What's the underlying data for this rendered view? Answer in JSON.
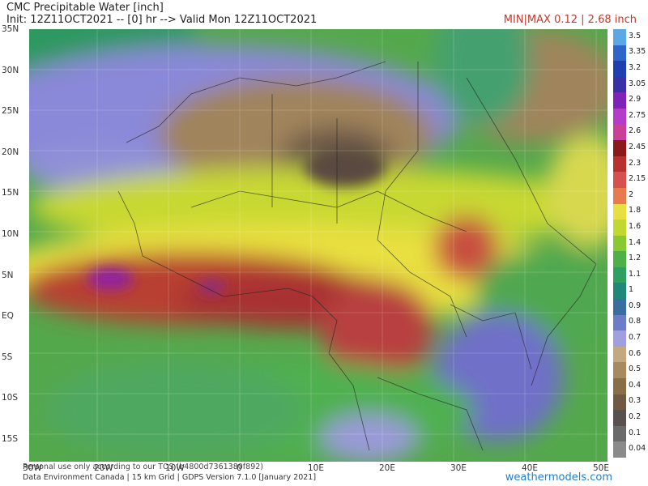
{
  "header": {
    "title": "CMC Precipitable Water [inch]",
    "run_info": "Init: 12Z11OCT2021 -- [0] hr --> Valid Mon 12Z11OCT2021",
    "minmax": "MIN|MAX 0.12 | 2.68 inch"
  },
  "axes": {
    "lat_labels": [
      "35N",
      "30N",
      "25N",
      "20N",
      "15N",
      "10N",
      "5N",
      "EQ",
      "5S",
      "10S",
      "15S"
    ],
    "lon_labels": [
      "30W",
      "20W",
      "10W",
      "0",
      "10E",
      "20E",
      "30E",
      "40E",
      "50E"
    ]
  },
  "legend": {
    "labels": [
      "3.5",
      "3.35",
      "3.2",
      "3.05",
      "2.9",
      "2.75",
      "2.6",
      "2.45",
      "2.3",
      "2.15",
      "2",
      "1.8",
      "1.6",
      "1.4",
      "1.2",
      "1.1",
      "1",
      "0.9",
      "0.8",
      "0.7",
      "0.6",
      "0.5",
      "0.4",
      "0.3",
      "0.2",
      "0.1",
      "0.04"
    ],
    "colors": [
      "#5aa8e6",
      "#2f64c8",
      "#1f3fb0",
      "#3b2fa8",
      "#7e22b8",
      "#b43cc8",
      "#c8409a",
      "#8c1a1a",
      "#b83030",
      "#d65050",
      "#e87a50",
      "#e8e040",
      "#c0d830",
      "#88c830",
      "#50b048",
      "#30a060",
      "#208878",
      "#3a6ea0",
      "#6c7cc8",
      "#a0a0e0",
      "#c4a880",
      "#a88a60",
      "#8a6e48",
      "#705a40",
      "#5a5050",
      "#6a6a6a",
      "#8a8a8a"
    ]
  },
  "footer": {
    "disclaimer": "Personal use only according to our TOS (b4800d7361380f892)",
    "credits": "Data Environment Canada | 15 km Grid | GDPS Version 7.1.0 [January 2021]",
    "brand": "weathermodels.com"
  }
}
